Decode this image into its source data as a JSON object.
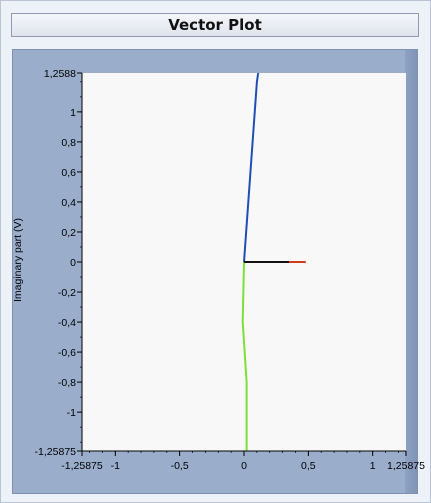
{
  "window": {
    "title": "Vector Plot"
  },
  "colors": {
    "plot_background": "#f8f8f8",
    "frame": "#9aaecc"
  },
  "chart_data": {
    "type": "line",
    "title": "",
    "xlabel": "",
    "ylabel": "Imaginary part (V)",
    "xlim": [
      -1.25875,
      1.25875
    ],
    "ylim": [
      -1.25875,
      1.2588
    ],
    "grid": false,
    "x_ticks": [
      {
        "value": -1.25875,
        "label": "-1,25875"
      },
      {
        "value": -1,
        "label": "-1"
      },
      {
        "value": -0.5,
        "label": "-0,5"
      },
      {
        "value": 0,
        "label": "0"
      },
      {
        "value": 0.5,
        "label": "0,5"
      },
      {
        "value": 1,
        "label": "1"
      },
      {
        "value": 1.25875,
        "label": "1,25875"
      }
    ],
    "y_ticks": [
      {
        "value": 1.2588,
        "label": "1,2588"
      },
      {
        "value": 1,
        "label": "1"
      },
      {
        "value": 0.8,
        "label": "0,8"
      },
      {
        "value": 0.6,
        "label": "0,6"
      },
      {
        "value": 0.4,
        "label": "0,4"
      },
      {
        "value": 0.2,
        "label": "0,2"
      },
      {
        "value": 0,
        "label": "0"
      },
      {
        "value": -0.2,
        "label": "-0,2"
      },
      {
        "value": -0.4,
        "label": "-0,4"
      },
      {
        "value": -0.6,
        "label": "-0,6"
      },
      {
        "value": -0.8,
        "label": "-0,8"
      },
      {
        "value": -1,
        "label": "-1"
      },
      {
        "value": -1.25875,
        "label": "-1,25875"
      }
    ],
    "series": [
      {
        "color": "#1f4fb5",
        "x": [
          0,
          0.1,
          0.11
        ],
        "y": [
          0,
          1.2,
          1.2588
        ]
      },
      {
        "color": "#7de03a",
        "x": [
          0,
          -0.01,
          0.02,
          0.02
        ],
        "y": [
          0,
          -0.4,
          -0.8,
          -1.25875
        ]
      },
      {
        "color": "#d23a1a",
        "x": [
          0,
          0.48
        ],
        "y": [
          0,
          0
        ]
      },
      {
        "color": "#111111",
        "x": [
          0,
          0.35
        ],
        "y": [
          0,
          0
        ]
      }
    ]
  }
}
